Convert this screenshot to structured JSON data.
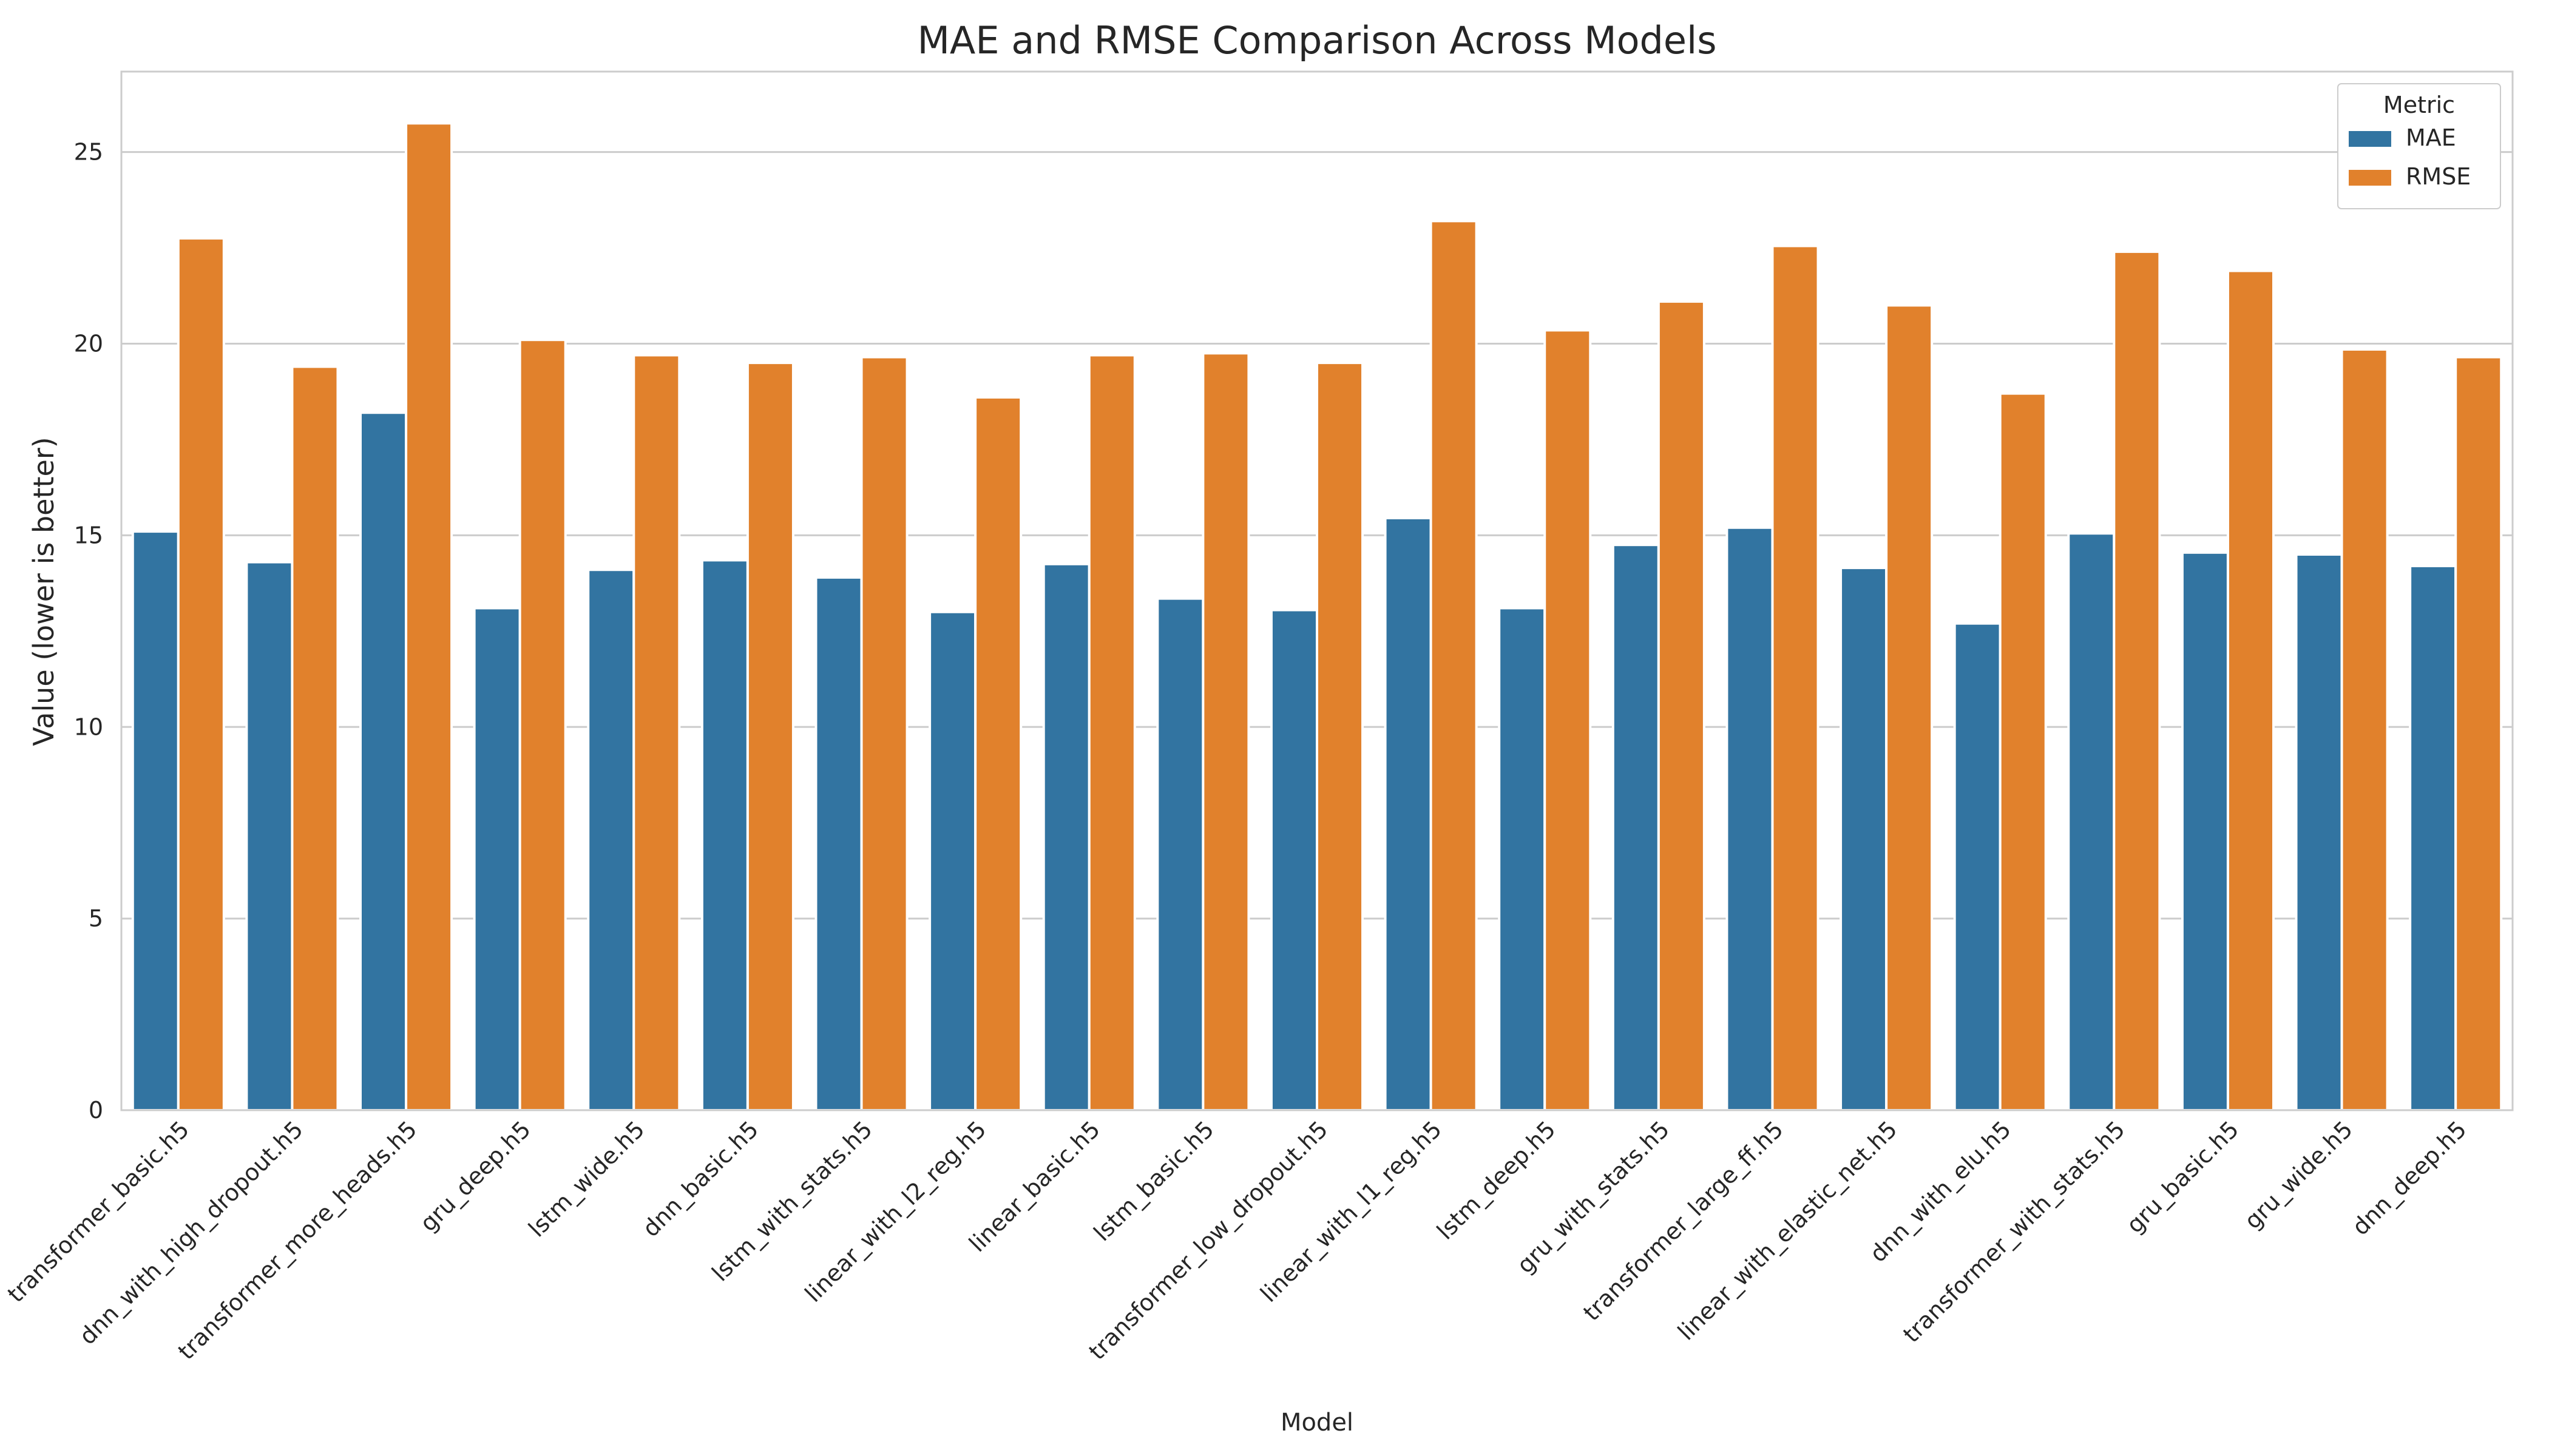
{
  "chart_data": {
    "type": "bar",
    "title": "MAE and RMSE Comparison Across Models",
    "xlabel": "Model",
    "ylabel": "Value (lower is better)",
    "ylim": [
      0,
      27.1
    ],
    "yticks": [
      0,
      5,
      10,
      15,
      20,
      25
    ],
    "grid": "horizontal",
    "legend": {
      "title": "Metric",
      "placement": "top-right"
    },
    "categories": [
      "transformer_basic.h5",
      "dnn_with_high_dropout.h5",
      "transformer_more_heads.h5",
      "gru_deep.h5",
      "lstm_wide.h5",
      "dnn_basic.h5",
      "lstm_with_stats.h5",
      "linear_with_l2_reg.h5",
      "linear_basic.h5",
      "lstm_basic.h5",
      "transformer_low_dropout.h5",
      "linear_with_l1_reg.h5",
      "lstm_deep.h5",
      "gru_with_stats.h5",
      "transformer_large_ff.h5",
      "linear_with_elastic_net.h5",
      "dnn_with_elu.h5",
      "transformer_with_stats.h5",
      "gru_basic.h5",
      "gru_wide.h5",
      "dnn_deep.h5"
    ],
    "series": [
      {
        "name": "MAE",
        "color": "#3274a1",
        "values": [
          15.1,
          14.3,
          18.2,
          13.1,
          14.1,
          14.35,
          13.9,
          13.0,
          14.25,
          13.35,
          13.05,
          15.45,
          13.1,
          14.75,
          15.2,
          14.15,
          12.7,
          15.05,
          14.55,
          14.5,
          14.2
        ]
      },
      {
        "name": "RMSE",
        "color": "#e1812c",
        "values": [
          22.75,
          19.4,
          25.75,
          20.1,
          19.7,
          19.5,
          19.65,
          18.6,
          19.7,
          19.75,
          19.5,
          23.2,
          20.35,
          21.1,
          22.55,
          21.0,
          18.7,
          22.4,
          21.9,
          19.85,
          19.65
        ]
      }
    ]
  }
}
